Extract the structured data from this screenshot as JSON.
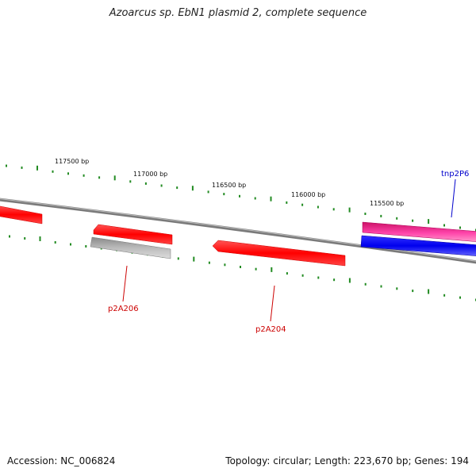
{
  "title": "Azoarcus sp. EbN1 plasmid 2, complete sequence",
  "footer": {
    "accession": "Accession: NC_006824",
    "summary": "Topology: circular; Length: 223,670 bp; Genes: 194"
  },
  "ruler": {
    "labels": [
      "117500 bp",
      "117000 bp",
      "116500 bp",
      "116000 bp",
      "115500 bp"
    ],
    "tick_color": "#228b22"
  },
  "genes": [
    {
      "name": "p2A206",
      "color": "#cc0000"
    },
    {
      "name": "p2A204",
      "color": "#cc0000"
    },
    {
      "name": "tnp2P6",
      "color": "#0000cc"
    }
  ],
  "colors": {
    "forward_gene": "#ff0000",
    "reverse_gene": "#ff0000",
    "insertion": "#ee1188",
    "mobile": "#0000ee",
    "pseudo": "#aaaaaa",
    "backbone": "#777777"
  }
}
